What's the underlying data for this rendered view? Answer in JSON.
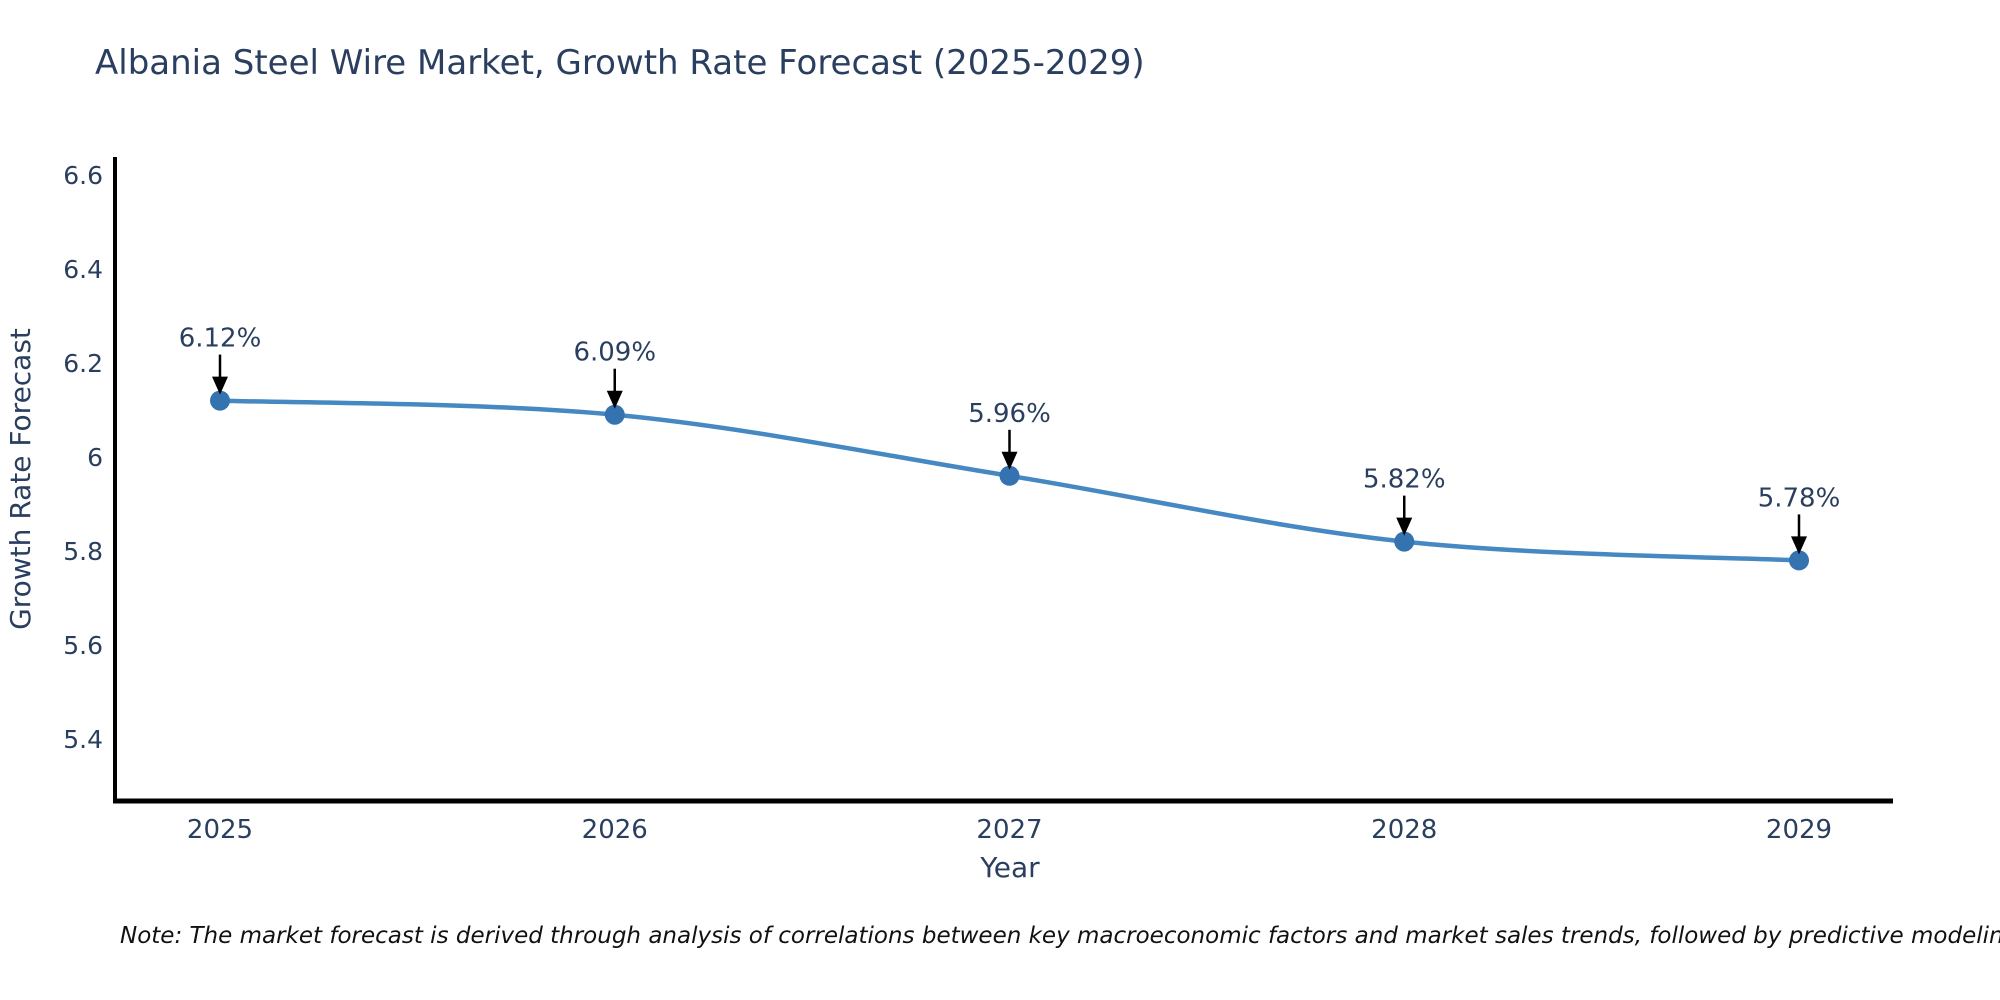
{
  "title": "Albania Steel Wire Market, Growth Rate Forecast (2025-2029)",
  "note": "Note: The market forecast is derived through analysis of correlations between key macroeconomic factors and market sales trends, followed by predictive modeling to project future sales",
  "chart_data": {
    "type": "line",
    "title": "Albania Steel Wire Market, Growth Rate Forecast (2025-2029)",
    "x": [
      2025,
      2026,
      2027,
      2028,
      2029
    ],
    "series": [
      {
        "name": "Growth Rate Forecast",
        "values": [
          6.12,
          6.09,
          5.96,
          5.82,
          5.78
        ]
      }
    ],
    "point_labels": [
      "6.12%",
      "6.09%",
      "5.96%",
      "5.82%",
      "5.78%"
    ],
    "xlabel": "Year",
    "ylabel": "Growth Rate Forecast",
    "xtick_labels": [
      "2025",
      "2026",
      "2027",
      "2028",
      "2029"
    ],
    "ytick_values": [
      6.6,
      6.4,
      6.2,
      6.0,
      5.8,
      5.6,
      5.4
    ],
    "ytick_labels": [
      "6.6",
      "6.4",
      "6.2",
      "6",
      "5.8",
      "5.6",
      "5.4"
    ],
    "xlim": [
      2024.73,
      2029.24
    ],
    "ylim": [
      5.27,
      6.63
    ],
    "grid": false,
    "legend": "none",
    "line_shape": "spline",
    "colors": {
      "line": "#4688c1",
      "marker": "#3572b0",
      "axis_line": "#000000",
      "text": "#2a3f5f",
      "annotation_text": "#2a3f5f",
      "annotation_arrow": "#000000",
      "note_text": "#111111"
    }
  }
}
